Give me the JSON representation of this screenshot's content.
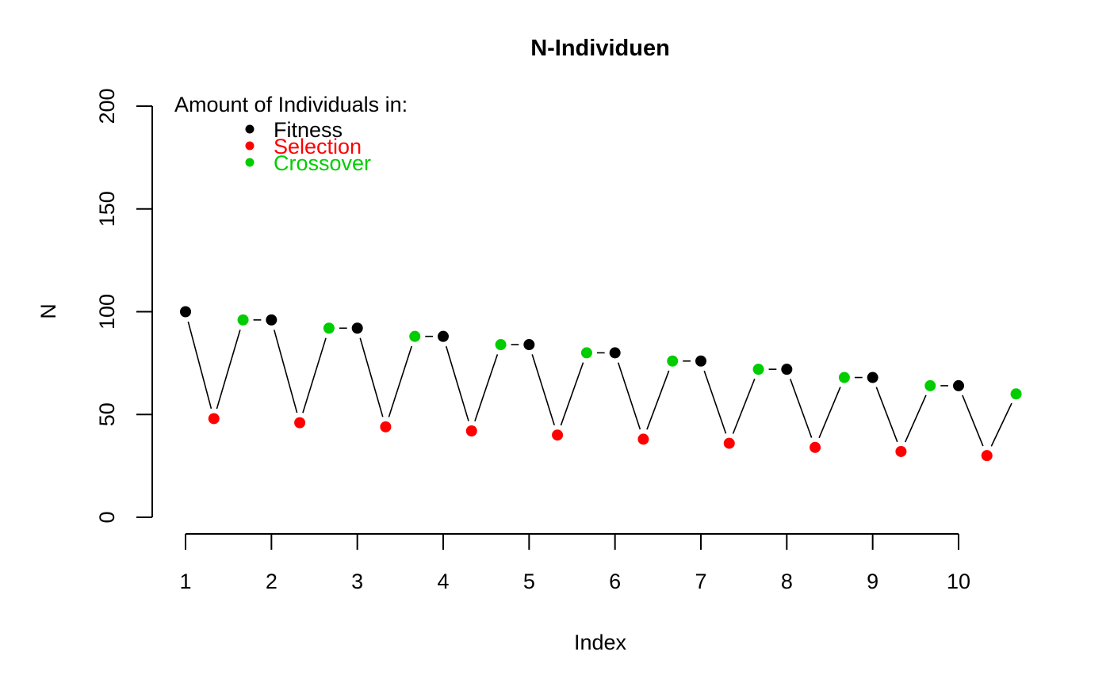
{
  "chart_data": {
    "type": "scatter",
    "title": "N-Individuen",
    "xlabel": "Index",
    "ylabel": "N",
    "xlim": [
      1,
      10.67
    ],
    "ylim": [
      0,
      200
    ],
    "x_ticks": [
      1,
      2,
      3,
      4,
      5,
      6,
      7,
      8,
      9,
      10
    ],
    "y_ticks": [
      0,
      50,
      100,
      150,
      200
    ],
    "grid": false,
    "connected": true,
    "legend": {
      "title": "Amount of Individuals in:",
      "position": "top-left",
      "entries": [
        {
          "label": "Fitness",
          "color": "#000000"
        },
        {
          "label": "Selection",
          "color": "#ff0000"
        },
        {
          "label": "Crossover",
          "color": "#00cd00"
        }
      ]
    },
    "series": [
      {
        "name": "Fitness",
        "color": "#000000",
        "x": [
          1,
          2,
          3,
          4,
          5,
          6,
          7,
          8,
          9,
          10
        ],
        "y": [
          100,
          96,
          92,
          88,
          84,
          80,
          76,
          72,
          68,
          64
        ]
      },
      {
        "name": "Selection",
        "color": "#ff0000",
        "x": [
          1.33,
          2.33,
          3.33,
          4.33,
          5.33,
          6.33,
          7.33,
          8.33,
          9.33,
          10.33
        ],
        "y": [
          48,
          46,
          44,
          42,
          40,
          38,
          36,
          34,
          32,
          30
        ]
      },
      {
        "name": "Crossover",
        "color": "#00cd00",
        "x": [
          1.67,
          2.67,
          3.67,
          4.67,
          5.67,
          6.67,
          7.67,
          8.67,
          9.67,
          10.67
        ],
        "y": [
          96,
          92,
          88,
          84,
          80,
          76,
          72,
          68,
          64,
          60
        ]
      }
    ]
  }
}
